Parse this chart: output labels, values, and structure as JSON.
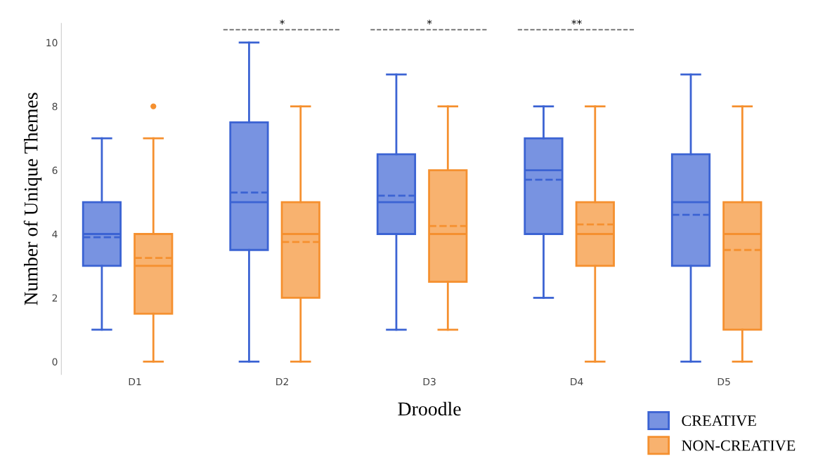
{
  "chart_data": {
    "type": "box",
    "xlabel": "Droodle",
    "ylabel": "Number of Unique Themes",
    "categories": [
      "D1",
      "D2",
      "D3",
      "D4",
      "D5"
    ],
    "ylim": [
      -0.4,
      10.6
    ],
    "yticks": [
      0,
      2,
      4,
      6,
      8,
      10
    ],
    "grid": false,
    "legend": "bottom right",
    "series": [
      {
        "name": "CREATIVE",
        "color": "#3b63d3",
        "boxes": [
          {
            "low": 1,
            "q1": 3,
            "median": 4,
            "q3": 5,
            "high": 7,
            "mean": 3.9
          },
          {
            "low": 0,
            "q1": 3.5,
            "median": 5,
            "q3": 7.5,
            "high": 10,
            "mean": 5.3
          },
          {
            "low": 1,
            "q1": 4,
            "median": 5,
            "q3": 6.5,
            "high": 9,
            "mean": 5.2
          },
          {
            "low": 2,
            "q1": 4,
            "median": 6,
            "q3": 7,
            "high": 8,
            "mean": 5.7
          },
          {
            "low": 0,
            "q1": 3,
            "median": 5,
            "q3": 6.5,
            "high": 9,
            "mean": 4.6
          }
        ]
      },
      {
        "name": "NON-CREATIVE",
        "color": "#f5902f",
        "boxes": [
          {
            "low": 0,
            "q1": 1.5,
            "median": 3,
            "q3": 4,
            "high": 7,
            "mean": 3.25,
            "outliers": [
              8
            ]
          },
          {
            "low": 0,
            "q1": 2,
            "median": 4,
            "q3": 5,
            "high": 8,
            "mean": 3.75
          },
          {
            "low": 1,
            "q1": 2.5,
            "median": 4,
            "q3": 6,
            "high": 8,
            "mean": 4.25
          },
          {
            "low": 0,
            "q1": 3,
            "median": 4,
            "q3": 5,
            "high": 8,
            "mean": 4.3
          },
          {
            "low": 0,
            "q1": 1,
            "median": 4,
            "q3": 5,
            "high": 8,
            "mean": 3.5
          }
        ]
      }
    ],
    "annotations": [
      "*",
      "*",
      "**"
    ]
  }
}
